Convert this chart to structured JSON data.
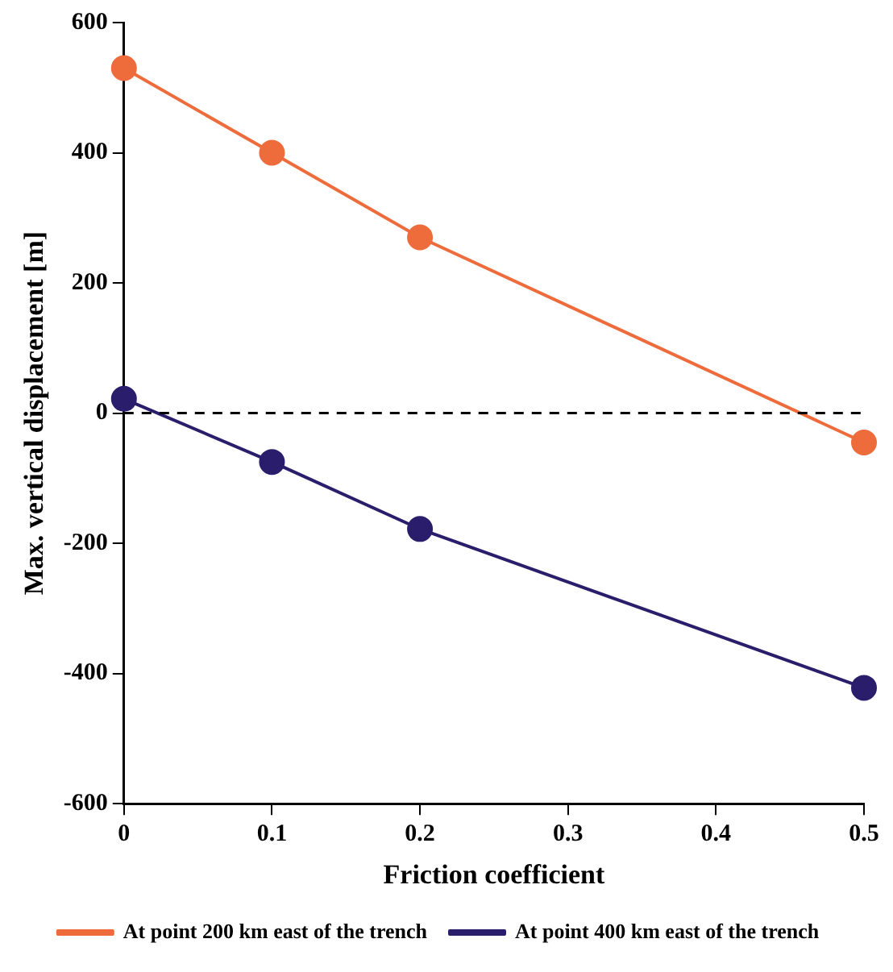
{
  "chart_data": {
    "type": "line",
    "xlabel": "Friction coefficient",
    "ylabel": "Max. vertical displacement [m]",
    "x": [
      0,
      0.1,
      0.2,
      0.5
    ],
    "series": [
      {
        "name": "At point 200 km east of the trench",
        "color": "#ee6c3b",
        "values": [
          530,
          400,
          270,
          -45
        ]
      },
      {
        "name": "At point 400 km east of the trench",
        "color": "#2a1d6b",
        "values": [
          22,
          -75,
          -178,
          -422
        ]
      }
    ],
    "xlim": [
      0,
      0.5
    ],
    "xticks": [
      0,
      0.1,
      0.2,
      0.3,
      0.4,
      0.5
    ],
    "ylim": [
      -600,
      600
    ],
    "yticks": [
      -600,
      -400,
      -200,
      0,
      200,
      400,
      600
    ],
    "ref_lines": [
      {
        "axis": "y",
        "value": 0,
        "color": "#000000",
        "line_style": "dashed"
      }
    ],
    "grid": false,
    "legend": "bottom",
    "marker": "circle",
    "line_style": "solid"
  }
}
